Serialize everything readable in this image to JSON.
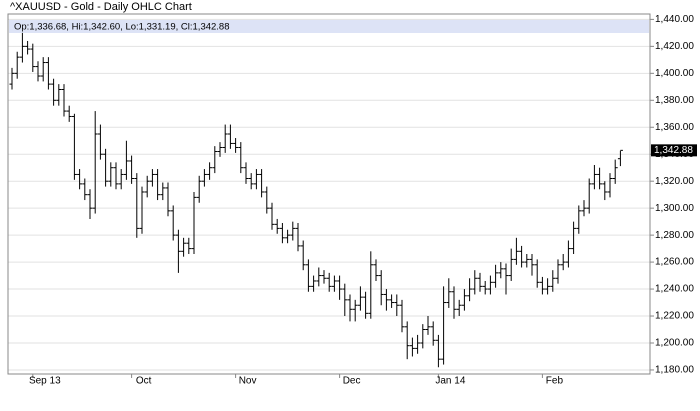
{
  "chart_data": {
    "type": "ohlc",
    "title": "^XAUUSD - Gold - Daily OHLC Chart",
    "readout": "Op:1,336.68, Hi:1,342.60, Lo:1,331.19, Cl:1,342.88",
    "last_price": {
      "value": 1342.88,
      "label": "1,342.88"
    },
    "color": "#000000",
    "grid": true,
    "categories": [
      null,
      null,
      null,
      null,
      "Sep 13",
      null,
      null,
      null,
      null,
      null,
      null,
      null,
      null,
      null,
      null,
      null,
      null,
      null,
      null,
      null,
      null,
      null,
      null,
      "Oct",
      null,
      null,
      null,
      null,
      null,
      null,
      null,
      null,
      null,
      null,
      null,
      null,
      null,
      null,
      null,
      null,
      null,
      null,
      null,
      "Nov",
      null,
      null,
      null,
      null,
      null,
      null,
      null,
      null,
      null,
      null,
      null,
      null,
      null,
      null,
      null,
      null,
      null,
      null,
      null,
      "Dec",
      null,
      null,
      null,
      null,
      null,
      null,
      null,
      null,
      null,
      null,
      null,
      null,
      null,
      null,
      null,
      null,
      null,
      null,
      "Jan 14",
      null,
      null,
      null,
      null,
      null,
      null,
      null,
      null,
      null,
      null,
      null,
      null,
      null,
      null,
      null,
      null,
      null,
      null,
      null,
      "Feb",
      null,
      null,
      null,
      null,
      null,
      null,
      null,
      null,
      null,
      null,
      null,
      null,
      null,
      null,
      null
    ],
    "open": [
      1392,
      1400,
      1412,
      1420,
      1418,
      1405,
      1398,
      1408,
      1392,
      1380,
      1388,
      1372,
      1368,
      1325,
      1318,
      1310,
      1300,
      1355,
      1340,
      1320,
      1330,
      1318,
      1325,
      1335,
      1322,
      1285,
      1312,
      1320,
      1325,
      1310,
      1315,
      1298,
      1280,
      1268,
      1274,
      1270,
      1308,
      1320,
      1325,
      1330,
      1342,
      1345,
      1355,
      1348,
      1345,
      1330,
      1322,
      1318,
      1325,
      1312,
      1300,
      1288,
      1285,
      1278,
      1280,
      1285,
      1272,
      1258,
      1242,
      1246,
      1250,
      1248,
      1242,
      1246,
      1240,
      1232,
      1225,
      1228,
      1234,
      1222,
      1258,
      1250,
      1236,
      1232,
      1230,
      1228,
      1212,
      1198,
      1196,
      1200,
      1210,
      1212,
      1202,
      1188,
      1230,
      1238,
      1225,
      1228,
      1235,
      1240,
      1248,
      1242,
      1240,
      1245,
      1252,
      1255,
      1250,
      1262,
      1268,
      1260,
      1262,
      1258,
      1245,
      1240,
      1242,
      1248,
      1258,
      1260,
      1270,
      1285,
      1298,
      1300,
      1318,
      1325,
      1318,
      1312,
      1322,
      1336.68
    ],
    "high": [
      1404,
      1416,
      1430,
      1424,
      1422,
      1409,
      1412,
      1412,
      1396,
      1392,
      1392,
      1376,
      1370,
      1329,
      1322,
      1314,
      1372,
      1362,
      1344,
      1334,
      1334,
      1329,
      1350,
      1339,
      1326,
      1316,
      1324,
      1329,
      1329,
      1319,
      1319,
      1302,
      1284,
      1278,
      1278,
      1312,
      1324,
      1329,
      1334,
      1346,
      1349,
      1362,
      1362,
      1352,
      1349,
      1334,
      1326,
      1329,
      1329,
      1316,
      1304,
      1292,
      1289,
      1284,
      1290,
      1289,
      1276,
      1262,
      1250,
      1256,
      1254,
      1252,
      1250,
      1250,
      1244,
      1236,
      1232,
      1242,
      1238,
      1268,
      1262,
      1254,
      1240,
      1236,
      1236,
      1232,
      1216,
      1204,
      1206,
      1214,
      1220,
      1216,
      1206,
      1242,
      1248,
      1242,
      1232,
      1240,
      1248,
      1254,
      1252,
      1246,
      1250,
      1258,
      1260,
      1259,
      1270,
      1278,
      1272,
      1266,
      1266,
      1262,
      1249,
      1248,
      1254,
      1262,
      1266,
      1276,
      1290,
      1302,
      1306,
      1322,
      1332,
      1330,
      1320,
      1326,
      1336,
      1342.6
    ],
    "low": [
      1388,
      1396,
      1408,
      1414,
      1401,
      1394,
      1394,
      1388,
      1376,
      1376,
      1368,
      1364,
      1321,
      1314,
      1306,
      1292,
      1296,
      1336,
      1316,
      1316,
      1314,
      1314,
      1321,
      1318,
      1278,
      1281,
      1308,
      1316,
      1306,
      1306,
      1294,
      1276,
      1252,
      1264,
      1266,
      1266,
      1304,
      1316,
      1321,
      1326,
      1338,
      1341,
      1344,
      1341,
      1326,
      1318,
      1314,
      1314,
      1308,
      1296,
      1284,
      1281,
      1274,
      1274,
      1276,
      1268,
      1254,
      1238,
      1238,
      1242,
      1244,
      1238,
      1238,
      1232,
      1220,
      1216,
      1216,
      1224,
      1218,
      1218,
      1246,
      1228,
      1224,
      1226,
      1220,
      1208,
      1188,
      1190,
      1192,
      1196,
      1206,
      1198,
      1182,
      1184,
      1226,
      1218,
      1220,
      1224,
      1231,
      1236,
      1238,
      1236,
      1236,
      1241,
      1248,
      1236,
      1246,
      1258,
      1256,
      1256,
      1250,
      1241,
      1236,
      1236,
      1238,
      1244,
      1254,
      1256,
      1266,
      1281,
      1294,
      1296,
      1314,
      1314,
      1306,
      1308,
      1318,
      1331.19
    ],
    "close": [
      1400,
      1412,
      1420,
      1418,
      1405,
      1398,
      1408,
      1392,
      1380,
      1388,
      1372,
      1368,
      1325,
      1318,
      1310,
      1300,
      1355,
      1340,
      1320,
      1330,
      1318,
      1325,
      1335,
      1322,
      1285,
      1312,
      1320,
      1325,
      1310,
      1315,
      1298,
      1280,
      1268,
      1274,
      1270,
      1308,
      1320,
      1325,
      1330,
      1342,
      1345,
      1355,
      1348,
      1345,
      1330,
      1322,
      1318,
      1325,
      1312,
      1300,
      1288,
      1285,
      1278,
      1280,
      1285,
      1272,
      1258,
      1242,
      1246,
      1250,
      1248,
      1242,
      1246,
      1240,
      1232,
      1225,
      1228,
      1234,
      1222,
      1258,
      1250,
      1236,
      1232,
      1230,
      1228,
      1212,
      1198,
      1196,
      1200,
      1210,
      1212,
      1202,
      1188,
      1230,
      1238,
      1225,
      1228,
      1235,
      1240,
      1248,
      1242,
      1240,
      1245,
      1252,
      1255,
      1250,
      1262,
      1268,
      1260,
      1262,
      1258,
      1245,
      1240,
      1242,
      1248,
      1258,
      1260,
      1270,
      1285,
      1298,
      1300,
      1318,
      1325,
      1318,
      1312,
      1322,
      1330,
      1342.88
    ],
    "ylim": [
      1177,
      1444
    ],
    "yticks": [
      {
        "value": 1180,
        "label": "1,180.00"
      },
      {
        "value": 1200,
        "label": "1,200.00"
      },
      {
        "value": 1220,
        "label": "1,220.00"
      },
      {
        "value": 1240,
        "label": "1,240.00"
      },
      {
        "value": 1260,
        "label": "1,260.00"
      },
      {
        "value": 1280,
        "label": "1,280.00"
      },
      {
        "value": 1300,
        "label": "1,300.00"
      },
      {
        "value": 1320,
        "label": "1,320.00"
      },
      {
        "value": 1340,
        "label": "1,340.00"
      },
      {
        "value": 1360,
        "label": "1,360.00"
      },
      {
        "value": 1380,
        "label": "1,380.00"
      },
      {
        "value": 1400,
        "label": "1,400.00"
      },
      {
        "value": 1420,
        "label": "1,420.00"
      },
      {
        "value": 1440,
        "label": "1,440.00"
      }
    ]
  }
}
